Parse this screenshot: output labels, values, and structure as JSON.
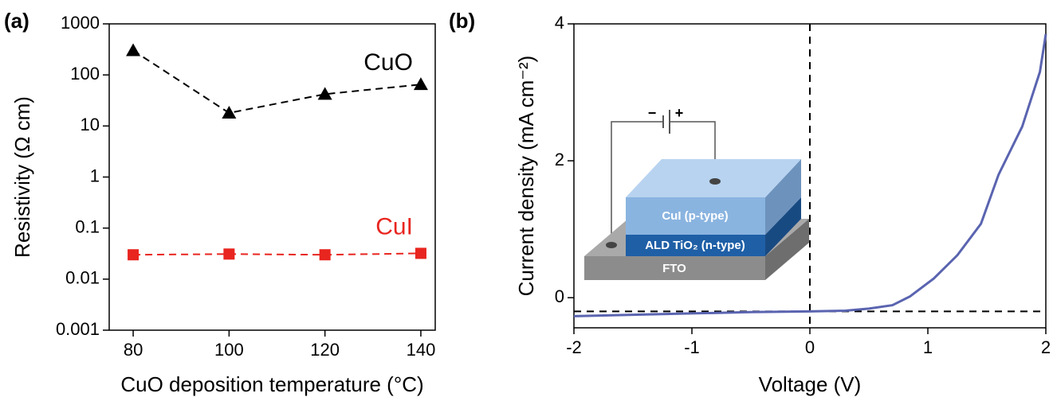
{
  "chart_data": [
    {
      "type": "line",
      "panel": "(a)",
      "xlabel": "CuO deposition temperature (°C)",
      "ylabel": "Resistivity (Ω cm)",
      "x": [
        80,
        100,
        120,
        140
      ],
      "xlim": [
        75,
        143
      ],
      "xticks": [
        80,
        100,
        120,
        140
      ],
      "ylim": [
        0.001,
        1000
      ],
      "yticks": [
        0.001,
        0.01,
        0.1,
        1,
        10,
        100,
        1000
      ],
      "log_y": true,
      "series": [
        {
          "name": "CuO",
          "color": "#000000",
          "marker": "triangle",
          "dashed": true,
          "values": [
            300,
            18,
            42,
            65
          ]
        },
        {
          "name": "CuI",
          "color": "#e8251f",
          "marker": "square",
          "dashed": true,
          "values": [
            0.03,
            0.031,
            0.03,
            0.032
          ]
        }
      ]
    },
    {
      "type": "line",
      "panel": "(b)",
      "xlabel": "Voltage (V)",
      "ylabel": "Current density (mA cm⁻²)",
      "x": [
        -2,
        -1.5,
        -1,
        -0.5,
        0,
        0.3,
        0.5,
        0.7,
        0.85,
        1.05,
        1.25,
        1.45,
        1.6,
        1.8,
        1.95,
        2
      ],
      "xlim": [
        -2,
        2
      ],
      "xticks": [
        -2,
        -1,
        0,
        1,
        2
      ],
      "ylim": [
        -0.44,
        4
      ],
      "yticks": [
        0,
        2,
        4
      ],
      "log_y": false,
      "series": [
        {
          "color": "#5a64b0",
          "dashed": false,
          "values": [
            -0.27,
            -0.25,
            -0.23,
            -0.21,
            -0.2,
            -0.19,
            -0.16,
            -0.11,
            0.02,
            0.28,
            0.62,
            1.08,
            1.8,
            2.5,
            3.3,
            3.85
          ]
        }
      ],
      "vlines": [
        0
      ],
      "hlines": [
        -0.2
      ],
      "inset_labels": [
        "CuI (p-type)",
        "ALD TiO₂ (n-type)",
        "FTO",
        "−",
        "+"
      ]
    }
  ]
}
